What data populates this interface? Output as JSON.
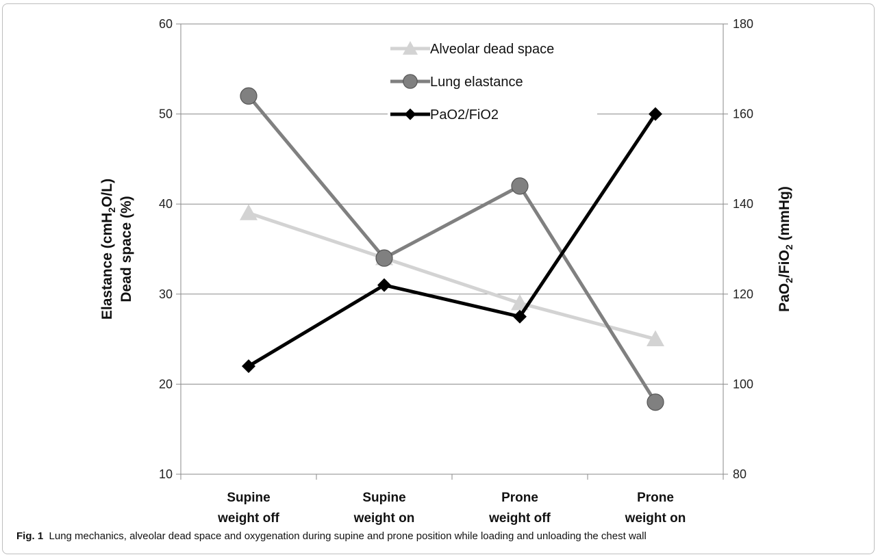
{
  "chart_data": {
    "type": "line",
    "categories": [
      [
        "Supine",
        "weight off"
      ],
      [
        "Supine",
        "weight on"
      ],
      [
        "Prone",
        "weight off"
      ],
      [
        "Prone",
        "weight on"
      ]
    ],
    "y_left": {
      "label_line1_pre": "Elastance (cmH",
      "label_line1_sub": "2",
      "label_line1_post": "O/L)",
      "label_line2": "Dead space (%)",
      "min": 10,
      "max": 60,
      "ticks": [
        10,
        20,
        30,
        40,
        50,
        60
      ]
    },
    "y_right": {
      "label_pre": "PaO",
      "label_sub1": "2",
      "label_mid": "/FiO",
      "label_sub2": "2",
      "label_post": " (mmHg)",
      "min": 80,
      "max": 180,
      "ticks": [
        80,
        100,
        120,
        140,
        160,
        180
      ]
    },
    "grid": true,
    "legend_position": "top-center",
    "series": [
      {
        "name": "Alveolar dead space",
        "axis": "left",
        "marker": "triangle",
        "color": "#d3d3d3",
        "values": [
          39,
          34,
          29,
          25
        ]
      },
      {
        "name": "Lung elastance",
        "axis": "left",
        "marker": "circle",
        "color": "#808080",
        "values": [
          52,
          34,
          42,
          18
        ]
      },
      {
        "name": "PaO2/FiO2",
        "axis": "right",
        "marker": "diamond",
        "color": "#000000",
        "values": [
          104,
          122,
          115,
          160
        ]
      }
    ]
  },
  "caption": {
    "label": "Fig. 1",
    "text": "Lung mechanics, alveolar dead space and oxygenation during supine and prone position while loading and unloading the chest wall"
  }
}
